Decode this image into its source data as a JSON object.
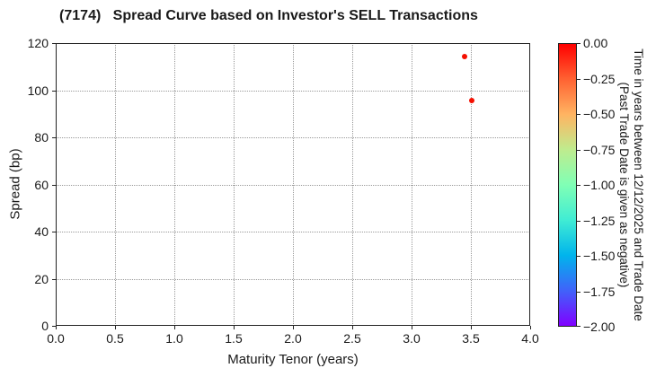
{
  "chart_data": {
    "type": "scatter",
    "title": "(7174)   Spread Curve based on Investor's SELL Transactions",
    "xlabel": "Maturity Tenor (years)",
    "ylabel": "Spread (bp)",
    "xlim": [
      0.0,
      4.0
    ],
    "ylim": [
      0,
      120
    ],
    "xtick_values": [
      0.0,
      0.5,
      1.0,
      1.5,
      2.0,
      2.5,
      3.0,
      3.5,
      4.0
    ],
    "xtick_labels": [
      "0.0",
      "0.5",
      "1.0",
      "1.5",
      "2.0",
      "2.5",
      "3.0",
      "3.5",
      "4.0"
    ],
    "ytick_values": [
      0,
      20,
      40,
      60,
      80,
      100,
      120
    ],
    "ytick_labels": [
      "0",
      "20",
      "40",
      "60",
      "80",
      "100",
      "120"
    ],
    "grid": true,
    "grid_style": "dotted",
    "legend": "none",
    "points": [
      {
        "x": 3.45,
        "y": 114.3,
        "time_value": 0.0,
        "color": "#f40f00"
      },
      {
        "x": 3.51,
        "y": 95.5,
        "time_value": 0.0,
        "color": "#f40f00"
      }
    ],
    "colorbar": {
      "colormap": "rainbow",
      "label_line1": "Time in years between 12/12/2025 and Trade Date",
      "label_line2": "(Past Trade Date is given as negative)",
      "vmax": 0.0,
      "vmin": -2.0,
      "tick_values": [
        0,
        -0.25,
        -0.5,
        -0.75,
        -1.0,
        -1.25,
        -1.5,
        -1.75,
        -2.0
      ],
      "tick_labels": [
        "0.00",
        "−0.25",
        "−0.50",
        "−0.75",
        "−1.00",
        "−1.25",
        "−1.50",
        "−1.75",
        "−2.00"
      ],
      "gradient": [
        "#ff0000",
        "#ff6232",
        "#ffb462",
        "#bfec8e",
        "#80ffb5",
        "#40ecd4",
        "#00b4ec",
        "#4062fa",
        "#8000ff"
      ]
    }
  }
}
